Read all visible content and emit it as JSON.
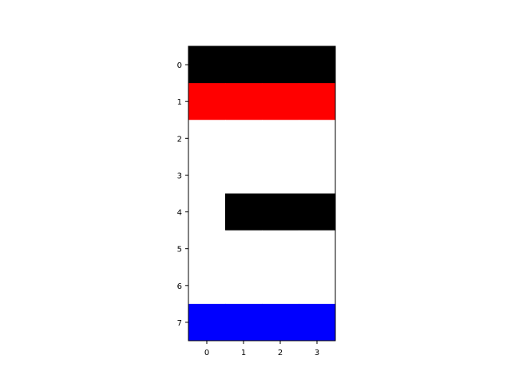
{
  "chart_data": {
    "type": "heatmap",
    "title": "",
    "xlabel": "",
    "ylabel": "",
    "rows": 8,
    "cols": 4,
    "x_ticks": [
      "0",
      "1",
      "2",
      "3"
    ],
    "y_ticks": [
      "0",
      "1",
      "2",
      "3",
      "4",
      "5",
      "6",
      "7"
    ],
    "xlim": [
      -0.5,
      3.5
    ],
    "ylim": [
      7.5,
      -0.5
    ],
    "grid": false,
    "cells": [
      [
        "#000000",
        "#000000",
        "#000000",
        "#000000"
      ],
      [
        "#ff0000",
        "#ff0000",
        "#ff0000",
        "#ff0000"
      ],
      [
        "#ffffff",
        "#ffffff",
        "#ffffff",
        "#ffffff"
      ],
      [
        "#ffffff",
        "#ffffff",
        "#ffffff",
        "#ffffff"
      ],
      [
        "#ffffff",
        "#000000",
        "#000000",
        "#000000"
      ],
      [
        "#ffffff",
        "#ffffff",
        "#ffffff",
        "#ffffff"
      ],
      [
        "#ffffff",
        "#ffffff",
        "#ffffff",
        "#ffffff"
      ],
      [
        "#0000ff",
        "#0000ff",
        "#0000ff",
        "#0000ff"
      ]
    ]
  }
}
